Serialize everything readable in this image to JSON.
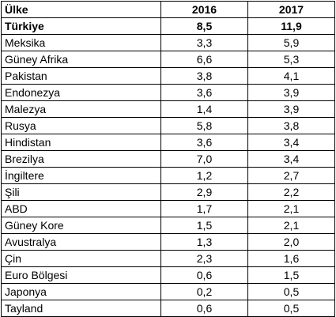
{
  "table": {
    "headers": [
      "Ülke",
      "2016",
      "2017"
    ],
    "rows": [
      {
        "country": "Türkiye",
        "y2016": "8,5",
        "y2017": "11,9",
        "bold": true
      },
      {
        "country": "Meksika",
        "y2016": "3,3",
        "y2017": "5,9"
      },
      {
        "country": "Güney Afrika",
        "y2016": "6,6",
        "y2017": "5,3"
      },
      {
        "country": "Pakistan",
        "y2016": "3,8",
        "y2017": "4,1"
      },
      {
        "country": "Endonezya",
        "y2016": "3,6",
        "y2017": "3,9"
      },
      {
        "country": "Malezya",
        "y2016": "1,4",
        "y2017": "3,9"
      },
      {
        "country": "Rusya",
        "y2016": "5,8",
        "y2017": "3,8"
      },
      {
        "country": "Hindistan",
        "y2016": "3,6",
        "y2017": "3,4"
      },
      {
        "country": "Brezilya",
        "y2016": "7,0",
        "y2017": "3,4"
      },
      {
        "country": "İngiltere",
        "y2016": "1,2",
        "y2017": "2,7"
      },
      {
        "country": "Şili",
        "y2016": "2,9",
        "y2017": "2,2"
      },
      {
        "country": "ABD",
        "y2016": "1,7",
        "y2017": "2,1"
      },
      {
        "country": "Güney Kore",
        "y2016": "1,5",
        "y2017": "2,1"
      },
      {
        "country": "Avustralya",
        "y2016": "1,3",
        "y2017": "2,0"
      },
      {
        "country": "Çin",
        "y2016": "2,3",
        "y2017": "1,6"
      },
      {
        "country": "Euro Bölgesi",
        "y2016": "0,6",
        "y2017": "1,5"
      },
      {
        "country": "Japonya",
        "y2016": "0,2",
        "y2017": "0,5"
      },
      {
        "country": "Tayland",
        "y2016": "0,6",
        "y2017": "0,5"
      }
    ]
  }
}
